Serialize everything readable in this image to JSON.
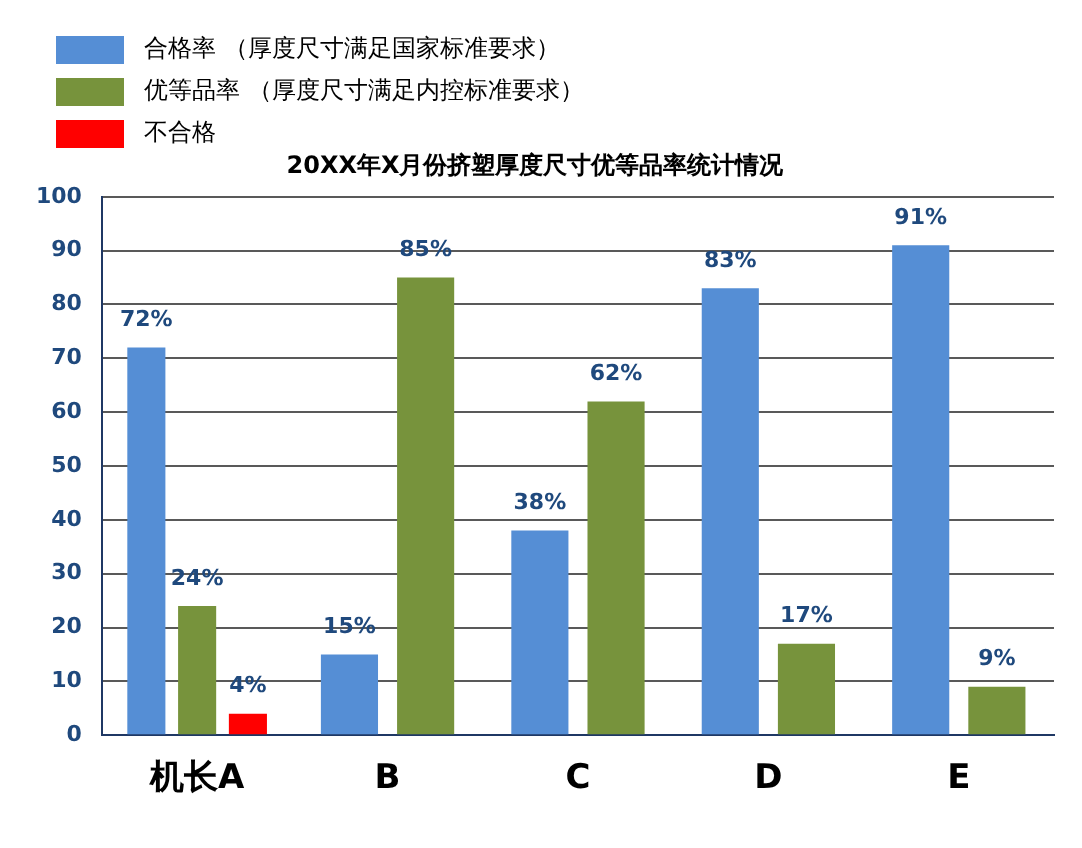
{
  "chart_data": {
    "type": "bar",
    "title": "20XX年X月份挤塑厚度尺寸优等品率统计情况",
    "categories": [
      "机长A",
      "B",
      "C",
      "D",
      "E"
    ],
    "series": [
      {
        "name": "合格率 （厚度尺寸满足国家标准要求）",
        "color": "#558ed5",
        "values": [
          72,
          15,
          38,
          83,
          91
        ],
        "value_labels": [
          "72%",
          "15%",
          "38%",
          "83%",
          "91%"
        ]
      },
      {
        "name": "优等品率 （厚度尺寸满足内控标准要求）",
        "color": "#77933c",
        "values": [
          24,
          85,
          62,
          17,
          9
        ],
        "value_labels": [
          "24%",
          "85%",
          "62%",
          "17%",
          "9%"
        ]
      },
      {
        "name": "不合格",
        "color": "#ff0000",
        "values": [
          4,
          null,
          null,
          null,
          null
        ],
        "value_labels": [
          "4%",
          null,
          null,
          null,
          null
        ]
      }
    ],
    "ylim": [
      0,
      100
    ],
    "yticks": [
      0,
      10,
      20,
      30,
      40,
      50,
      60,
      70,
      80,
      90,
      100
    ],
    "grid": "y",
    "legend": "top left"
  }
}
